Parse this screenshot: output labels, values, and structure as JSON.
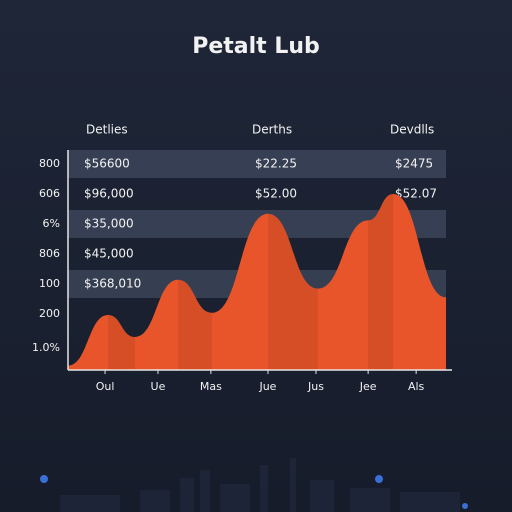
{
  "chart_data": {
    "type": "area",
    "title": "Petalt Lub",
    "table": {
      "headers": [
        "Detlies",
        "Derths",
        "Devdlls"
      ],
      "rows": [
        [
          "800",
          "$56600",
          "$22.25",
          "$2475"
        ],
        [
          "606",
          "$96,000",
          "$52.00",
          "$52.07"
        ],
        [
          "6%",
          "$35,000"
        ],
        [
          "806",
          "$45,000"
        ],
        [
          "100",
          "$368,010"
        ],
        [
          "200"
        ],
        [
          "1.0%"
        ]
      ]
    },
    "x": [
      0,
      10.6,
      17.7,
      29.1,
      38.1,
      52.9,
      66.1,
      79.4,
      86,
      100
    ],
    "series": [
      {
        "color": "#e8552a",
        "values": [
          2,
          25,
          15,
          41,
          26,
          71,
          37,
          68,
          80,
          33
        ]
      }
    ],
    "xlim": [
      0,
      100
    ],
    "ylim": [
      0,
      100
    ],
    "xticks": [
      {
        "value": 9.8,
        "label": "Oul"
      },
      {
        "value": 23.8,
        "label": "Ue"
      },
      {
        "value": 37.8,
        "label": "Mas"
      },
      {
        "value": 52.9,
        "label": "Jue"
      },
      {
        "value": 65.6,
        "label": "Jus"
      },
      {
        "value": 79.4,
        "label": "Jee"
      },
      {
        "value": 92.1,
        "label": "Als"
      }
    ]
  }
}
